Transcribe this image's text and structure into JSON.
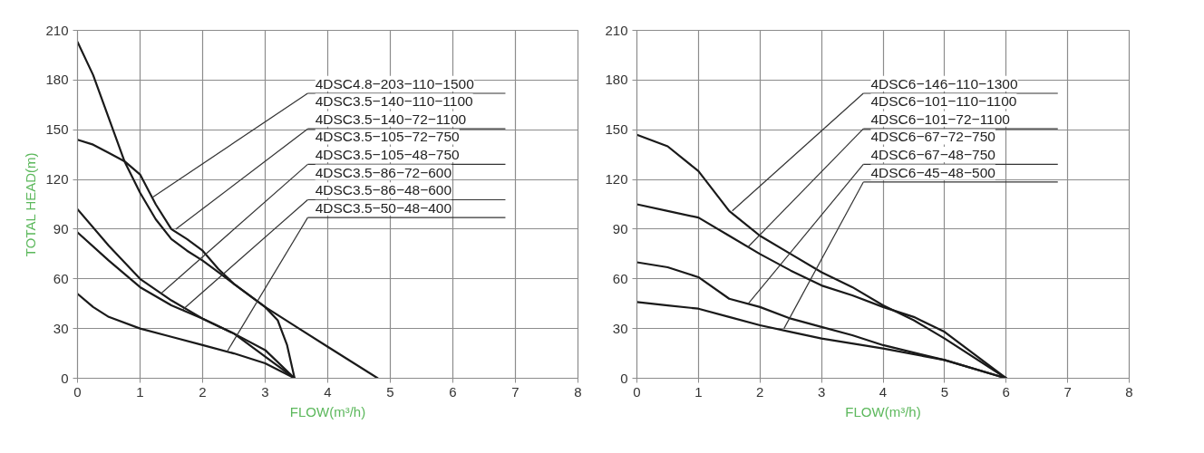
{
  "chart_data": [
    {
      "type": "line",
      "xlabel": "FLOW(m³/h)",
      "ylabel": "TOTAL HEAD(m)",
      "xlim": [
        0,
        8
      ],
      "ylim": [
        0,
        210
      ],
      "xticks": [
        0,
        1,
        2,
        3,
        4,
        5,
        6,
        7,
        8
      ],
      "yticks": [
        0,
        30,
        60,
        90,
        120,
        150,
        180,
        210
      ],
      "grid": true,
      "series": [
        {
          "color": "#1a1a1a",
          "x": [
            0,
            0.25,
            0.5,
            0.75,
            1,
            1.25,
            1.5,
            1.75,
            2,
            2.25,
            2.5,
            2.75,
            3,
            3.5,
            4,
            4.8
          ],
          "values": [
            203,
            183,
            157,
            131,
            112,
            96,
            84,
            77,
            71,
            64,
            57,
            50,
            43,
            31,
            19,
            0
          ]
        },
        {
          "color": "#1a1a1a",
          "x": [
            0,
            0.25,
            0.5,
            0.75,
            1,
            1.25,
            1.5,
            1.75,
            2,
            2.25,
            2.5,
            2.75,
            3,
            3.2,
            3.35,
            3.47
          ],
          "values": [
            144,
            141,
            136,
            131,
            123,
            105,
            90,
            84,
            77,
            66,
            57,
            50,
            43,
            35,
            20,
            0
          ]
        },
        {
          "color": "#1a1a1a",
          "x": [
            0,
            0.5,
            1,
            1.5,
            2,
            2.5,
            3,
            3.47
          ],
          "values": [
            102,
            80,
            60,
            47,
            36,
            27,
            17,
            0
          ]
        },
        {
          "color": "#1a1a1a",
          "x": [
            0,
            0.5,
            1,
            1.5,
            2,
            2.5,
            3,
            3.47
          ],
          "values": [
            88,
            71,
            55,
            44,
            36,
            27,
            13,
            0
          ]
        },
        {
          "color": "#1a1a1a",
          "x": [
            0,
            0.25,
            0.5,
            1,
            1.5,
            2,
            2.5,
            3,
            3.47
          ],
          "values": [
            51,
            43,
            37,
            30,
            25,
            20,
            15,
            9,
            0
          ]
        }
      ],
      "annotations": [
        {
          "text": "4DSC4.8−203−110−1500",
          "x": 1.19,
          "y": 109
        },
        "4DSC3.5−140−110−1100",
        {
          "text": "4DSC3.5−140−72−1100",
          "x": 1.57,
          "y": 90
        },
        "4DSC3.5−105−72−750",
        {
          "text": "4DSC3.5−105−48−750",
          "x": 1.33,
          "y": 51
        },
        "4DSC3.5−86−72−600",
        {
          "text": "4DSC3.5−86−48−600",
          "x": 1.67,
          "y": 41
        },
        {
          "text": "4DSC3.5−50−48−400",
          "x": 2.39,
          "y": 16
        }
      ]
    },
    {
      "type": "line",
      "xlabel": "FLOW(m³/h)",
      "xlim": [
        0,
        8
      ],
      "ylim": [
        0,
        210
      ],
      "xticks": [
        0,
        1,
        2,
        3,
        4,
        5,
        6,
        7,
        8
      ],
      "yticks": [
        0,
        30,
        60,
        90,
        120,
        150,
        180,
        210
      ],
      "grid": true,
      "series": [
        {
          "color": "#1a1a1a",
          "x": [
            0,
            0.5,
            1,
            1.5,
            2,
            2.5,
            3,
            3.5,
            4,
            4.5,
            5,
            6
          ],
          "values": [
            147,
            140,
            125,
            101,
            86,
            75,
            64,
            55,
            44,
            35,
            24,
            0
          ]
        },
        {
          "color": "#1a1a1a",
          "x": [
            0,
            0.5,
            1,
            1.5,
            2,
            2.5,
            3,
            3.5,
            4,
            4.5,
            5,
            6
          ],
          "values": [
            105,
            101,
            97,
            86,
            75,
            65,
            56,
            50,
            43,
            37,
            28,
            0
          ]
        },
        {
          "color": "#1a1a1a",
          "x": [
            0,
            0.5,
            1,
            1.5,
            2,
            2.5,
            3,
            3.5,
            4,
            5,
            6
          ],
          "values": [
            70,
            67,
            61,
            48,
            43,
            36,
            31,
            26,
            20,
            11,
            0
          ]
        },
        {
          "color": "#1a1a1a",
          "x": [
            0,
            0.5,
            1,
            1.5,
            2,
            2.5,
            3,
            3.5,
            4,
            5,
            6
          ],
          "values": [
            46,
            44,
            42,
            37,
            32,
            28,
            24,
            21,
            18,
            11,
            0
          ]
        }
      ],
      "annotations": [
        {
          "text": "4DSC6−146−110−1300",
          "x": 1.55,
          "y": 101
        },
        "4DSC6−101−110−1100",
        {
          "text": "4DSC6−101−72−1100",
          "x": 1.8,
          "y": 79
        },
        "4DSC6−67−72−750",
        {
          "text": "4DSC6−67−48−750",
          "x": 1.81,
          "y": 45
        },
        {
          "text": "4DSC6−45−48−500",
          "x": 2.39,
          "y": 30
        }
      ]
    }
  ]
}
